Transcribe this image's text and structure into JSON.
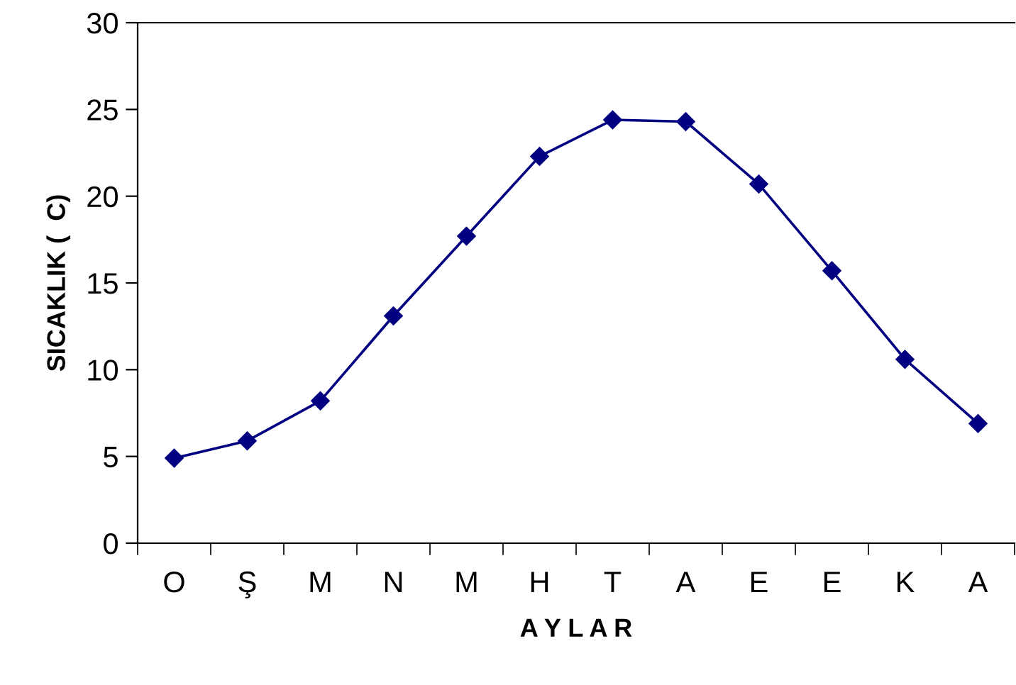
{
  "chart_data": {
    "type": "line",
    "xlabel": "A Y L A R",
    "ylabel": "SICAKLIK (  C)",
    "categories": [
      "O",
      "Ş",
      "M",
      "N",
      "M",
      "H",
      "T",
      "A",
      "E",
      "E",
      "K",
      "A"
    ],
    "series": [
      {
        "color": "#000080",
        "values": [
          4.9,
          5.9,
          8.2,
          13.1,
          17.7,
          22.3,
          24.4,
          24.3,
          20.7,
          15.7,
          10.6,
          6.9
        ]
      }
    ],
    "ylim": [
      0,
      30
    ],
    "yticks": [
      0,
      5,
      10,
      15,
      20,
      25,
      30
    ],
    "grid": false,
    "legend": false,
    "marker": "diamond",
    "line_style": "solid"
  }
}
